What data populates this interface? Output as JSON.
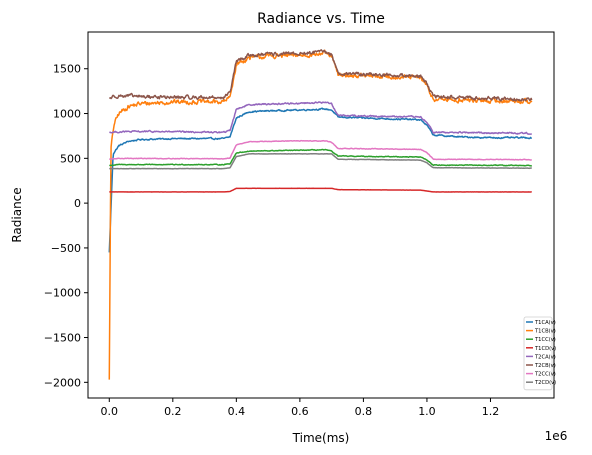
{
  "chart_data": {
    "type": "line",
    "title": "Radiance vs. Time",
    "xlabel": "Time(ms)",
    "ylabel": "Radiance",
    "x_offset_label": "1e6",
    "xlim": [
      -0.067,
      1.4
    ],
    "ylim": [
      -2175,
      1910
    ],
    "x_ticks": [
      0.0,
      0.2,
      0.4,
      0.6,
      0.8,
      1.0,
      1.2
    ],
    "x_tick_labels": [
      "0.0",
      "0.2",
      "0.4",
      "0.6",
      "0.8",
      "1.0",
      "1.2"
    ],
    "y_ticks": [
      -2000,
      -1500,
      -1000,
      -500,
      0,
      500,
      1000,
      1500
    ],
    "y_tick_labels": [
      "−2000",
      "−1500",
      "−1000",
      "−500",
      "0",
      "500",
      "1000",
      "1500"
    ],
    "grid": false,
    "legend_position": "bottom-right",
    "series": [
      {
        "name": "T1CA(v)",
        "color": "#1f77b4",
        "noise": 14,
        "x": [
          0.0,
          0.012,
          0.03,
          0.06,
          0.1,
          0.2,
          0.36,
          0.38,
          0.4,
          0.44,
          0.5,
          0.6,
          0.68,
          0.7,
          0.72,
          0.8,
          0.98,
          1.0,
          1.02,
          1.1,
          1.2,
          1.33
        ],
        "y": [
          -550,
          550,
          640,
          690,
          710,
          720,
          720,
          740,
          950,
          1020,
          1030,
          1040,
          1050,
          1040,
          960,
          950,
          930,
          870,
          760,
          740,
          730,
          730
        ]
      },
      {
        "name": "T1CB(v)",
        "color": "#ff7f0e",
        "noise": 45,
        "x": [
          0.0,
          0.005,
          0.015,
          0.03,
          0.06,
          0.1,
          0.2,
          0.36,
          0.38,
          0.4,
          0.44,
          0.5,
          0.6,
          0.68,
          0.7,
          0.72,
          0.8,
          0.98,
          1.0,
          1.02,
          1.1,
          1.2,
          1.33
        ],
        "y": [
          -1970,
          600,
          880,
          1000,
          1080,
          1110,
          1130,
          1130,
          1180,
          1550,
          1620,
          1640,
          1650,
          1670,
          1640,
          1430,
          1420,
          1400,
          1300,
          1160,
          1150,
          1140,
          1140
        ]
      },
      {
        "name": "T1CC(v)",
        "color": "#2ca02c",
        "noise": 7,
        "x": [
          0.0,
          0.03,
          0.36,
          0.38,
          0.4,
          0.44,
          0.6,
          0.68,
          0.7,
          0.72,
          0.98,
          1.0,
          1.02,
          1.33
        ],
        "y": [
          420,
          430,
          430,
          440,
          560,
          580,
          590,
          595,
          580,
          525,
          515,
          480,
          425,
          420
        ]
      },
      {
        "name": "T1CD(v)",
        "color": "#d62728",
        "noise": 1,
        "x": [
          0.0,
          0.36,
          0.38,
          0.4,
          0.7,
          0.72,
          0.98,
          1.0,
          1.02,
          1.33
        ],
        "y": [
          125,
          125,
          130,
          165,
          165,
          150,
          145,
          135,
          125,
          125
        ]
      },
      {
        "name": "T2CA(v)",
        "color": "#9467bd",
        "noise": 15,
        "x": [
          0.0,
          0.03,
          0.1,
          0.36,
          0.38,
          0.4,
          0.44,
          0.6,
          0.68,
          0.7,
          0.72,
          0.98,
          1.0,
          1.02,
          1.33
        ],
        "y": [
          790,
          795,
          800,
          790,
          810,
          1050,
          1100,
          1115,
          1125,
          1110,
          980,
          960,
          900,
          790,
          780
        ]
      },
      {
        "name": "T2CB(v)",
        "color": "#8c564b",
        "noise": 35,
        "x": [
          0.0,
          0.02,
          0.1,
          0.2,
          0.36,
          0.38,
          0.4,
          0.44,
          0.5,
          0.6,
          0.68,
          0.7,
          0.72,
          0.8,
          0.98,
          1.0,
          1.02,
          1.1,
          1.2,
          1.33
        ],
        "y": [
          1170,
          1200,
          1190,
          1180,
          1180,
          1230,
          1580,
          1650,
          1660,
          1670,
          1690,
          1660,
          1450,
          1440,
          1420,
          1320,
          1190,
          1180,
          1170,
          1160
        ]
      },
      {
        "name": "T2CC(v)",
        "color": "#e377c2",
        "noise": 6,
        "x": [
          0.0,
          0.03,
          0.36,
          0.38,
          0.4,
          0.44,
          0.6,
          0.68,
          0.7,
          0.72,
          0.98,
          1.0,
          1.02,
          1.33
        ],
        "y": [
          490,
          500,
          495,
          505,
          650,
          685,
          695,
          695,
          680,
          610,
          600,
          565,
          490,
          485
        ]
      },
      {
        "name": "T2CD(v)",
        "color": "#7f7f7f",
        "noise": 3,
        "x": [
          0.0,
          0.36,
          0.38,
          0.4,
          0.44,
          0.7,
          0.72,
          0.98,
          1.0,
          1.02,
          1.33
        ],
        "y": [
          385,
          385,
          395,
          520,
          550,
          550,
          490,
          480,
          450,
          395,
          390
        ]
      }
    ]
  }
}
